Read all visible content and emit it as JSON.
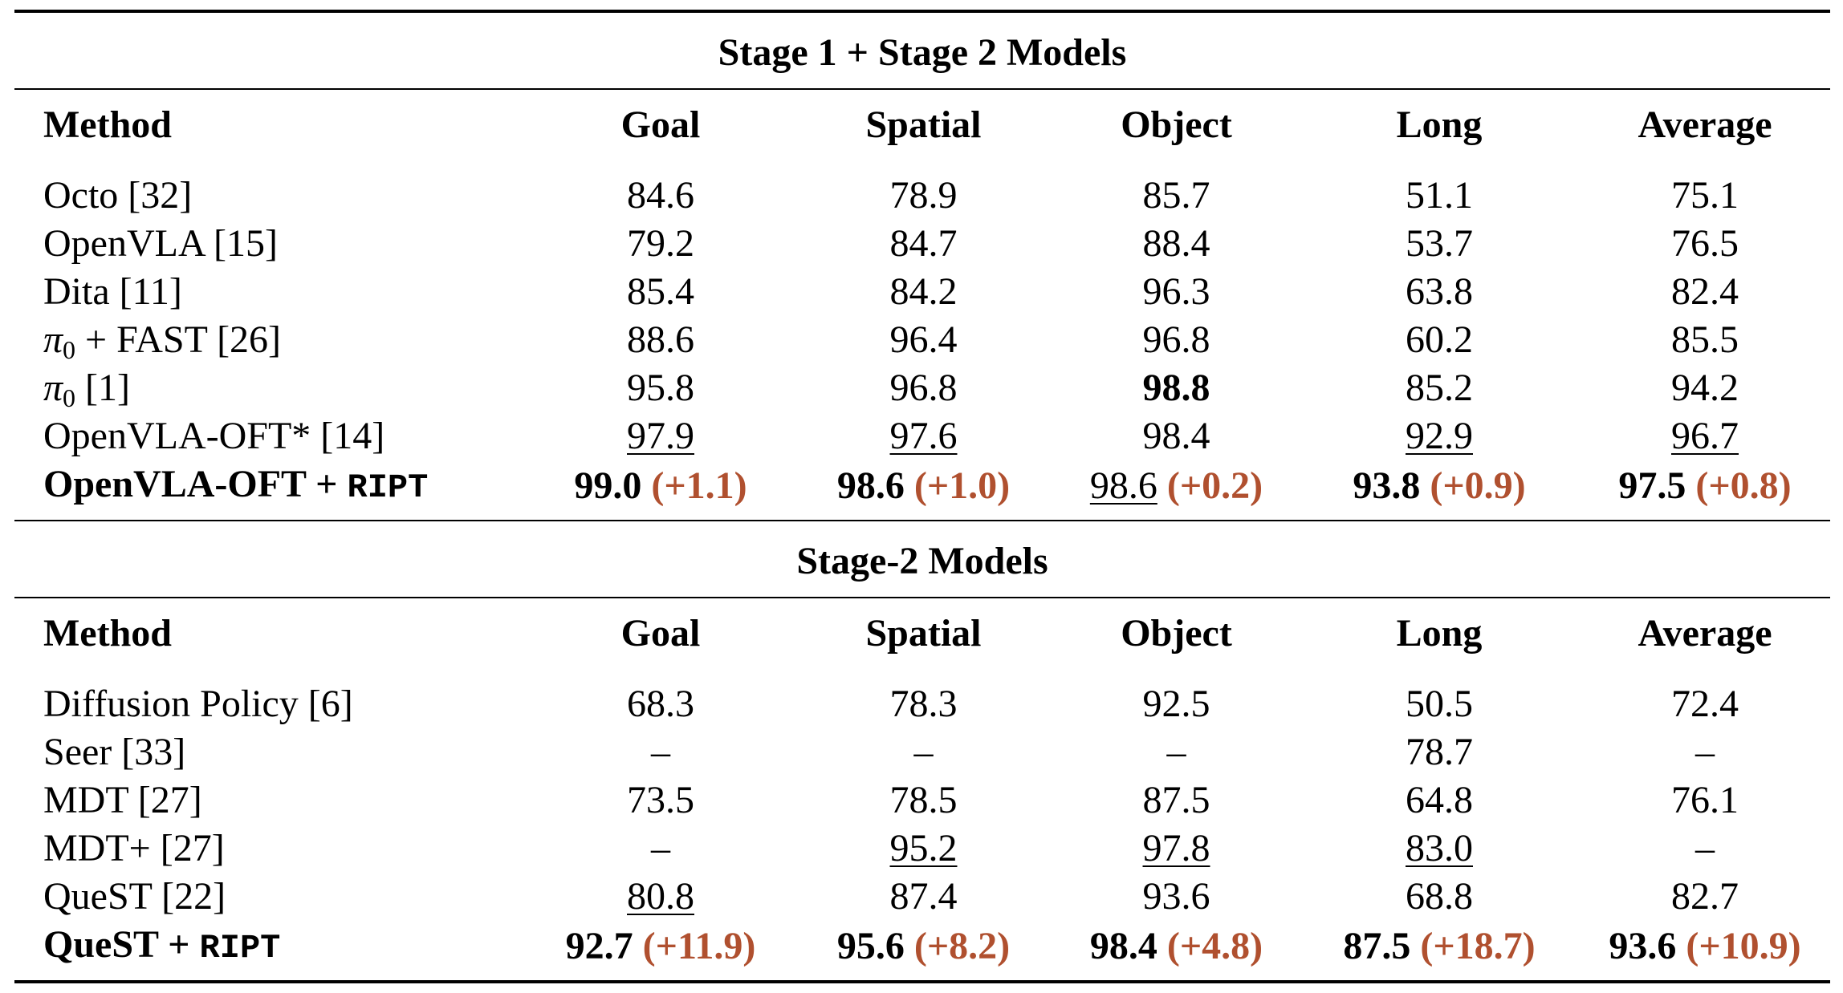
{
  "sections": [
    {
      "title": "Stage 1 + Stage 2 Models",
      "headers": [
        "Method",
        "Goal",
        "Spatial",
        "Object",
        "Long",
        "Average"
      ],
      "rows": [
        {
          "method": "Octo [32]",
          "goal": "84.6",
          "spatial": "78.9",
          "object": "85.7",
          "long": "51.1",
          "average": "75.1"
        },
        {
          "method": "OpenVLA [15]",
          "goal": "79.2",
          "spatial": "84.7",
          "object": "88.4",
          "long": "53.7",
          "average": "76.5"
        },
        {
          "method": "Dita [11]",
          "goal": "85.4",
          "spatial": "84.2",
          "object": "96.3",
          "long": "63.8",
          "average": "82.4"
        },
        {
          "method_symbol": "π",
          "method_sub": "0",
          "method_rest": " + FAST [26]",
          "goal": "88.6",
          "spatial": "96.4",
          "object": "96.8",
          "long": "60.2",
          "average": "85.5"
        },
        {
          "method_symbol": "π",
          "method_sub": "0",
          "method_rest": " [1]",
          "goal": "95.8",
          "spatial": "96.8",
          "object": "98.8",
          "long": "85.2",
          "average": "94.2"
        },
        {
          "method": "OpenVLA-OFT* [14]",
          "goal": "97.9",
          "spatial": "97.6",
          "object": "98.4",
          "long": "92.9",
          "average": "96.7"
        },
        {
          "method_base": "OpenVLA-OFT + ",
          "method_tag": "RIPT",
          "goal": "99.0",
          "goal_gain": "(+1.1)",
          "spatial": "98.6",
          "spatial_gain": "(+1.0)",
          "object": "98.6",
          "object_gain": "(+0.2)",
          "long": "93.8",
          "long_gain": "(+0.9)",
          "average": "97.5",
          "average_gain": "(+0.8)"
        }
      ]
    },
    {
      "title": "Stage-2 Models",
      "headers": [
        "Method",
        "Goal",
        "Spatial",
        "Object",
        "Long",
        "Average"
      ],
      "rows": [
        {
          "method": "Diffusion Policy [6]",
          "goal": "68.3",
          "spatial": "78.3",
          "object": "92.5",
          "long": "50.5",
          "average": "72.4"
        },
        {
          "method": "Seer [33]",
          "goal": "–",
          "spatial": "–",
          "object": "–",
          "long": "78.7",
          "average": "–"
        },
        {
          "method": "MDT [27]",
          "goal": "73.5",
          "spatial": "78.5",
          "object": "87.5",
          "long": "64.8",
          "average": "76.1"
        },
        {
          "method": "MDT+ [27]",
          "goal": "–",
          "spatial": "95.2",
          "object": "97.8",
          "long": "83.0",
          "average": "–"
        },
        {
          "method": "QueST [22]",
          "goal": "80.8",
          "spatial": "87.4",
          "object": "93.6",
          "long": "68.8",
          "average": "82.7"
        },
        {
          "method_base": "QueST + ",
          "method_tag": "RIPT",
          "goal": "92.7",
          "goal_gain": "(+11.9)",
          "spatial": "95.6",
          "spatial_gain": "(+8.2)",
          "object": "98.4",
          "object_gain": "(+4.8)",
          "long": "87.5",
          "long_gain": "(+18.7)",
          "average": "93.6",
          "average_gain": "(+10.9)"
        }
      ]
    }
  ],
  "colors": {
    "gain": "#b0502f",
    "text": "#000000"
  }
}
